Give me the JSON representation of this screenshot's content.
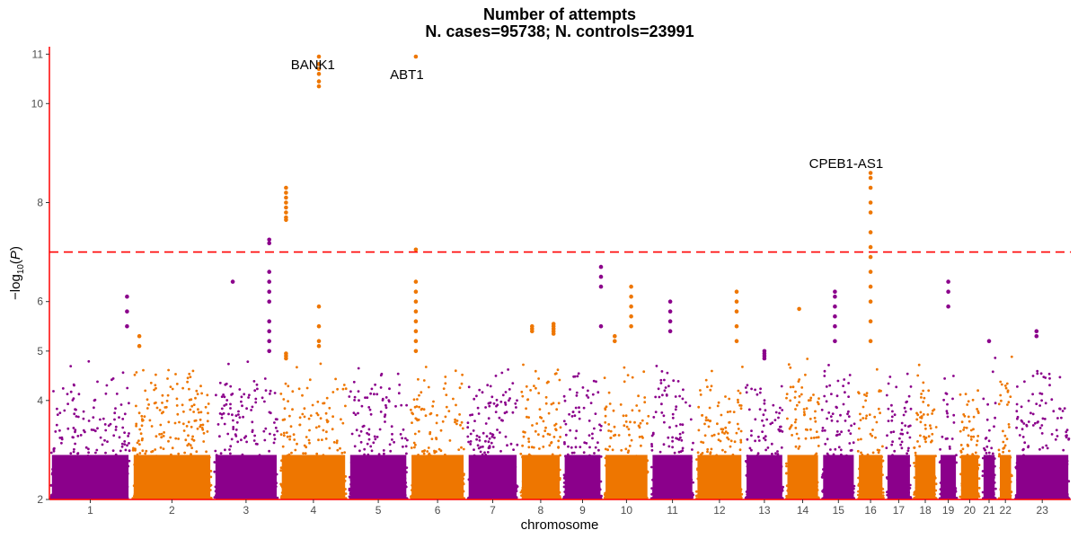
{
  "chart_data": {
    "type": "scatter",
    "title_lines": [
      "Number of attempts",
      "N. cases=95738; N. controls=23991"
    ],
    "xlabel": "chromosome",
    "ylabel": "−log10(P)",
    "ylim": [
      2,
      11.15
    ],
    "yticks": [
      2,
      4,
      5,
      6,
      8,
      10,
      11
    ],
    "significance_threshold": 7.0,
    "colors": {
      "odd": "#8b008b",
      "even": "#ee7600",
      "threshold": "#ff0000",
      "axis": "#ff0000"
    },
    "chromosomes": [
      {
        "label": "1",
        "start": 0.0,
        "end": 8.0,
        "show": true
      },
      {
        "label": "2",
        "start": 8.0,
        "end": 16.0,
        "show": true
      },
      {
        "label": "3",
        "start": 16.0,
        "end": 22.5,
        "show": true
      },
      {
        "label": "4",
        "start": 22.5,
        "end": 29.2,
        "show": true
      },
      {
        "label": "5",
        "start": 29.2,
        "end": 35.2,
        "show": true
      },
      {
        "label": "6",
        "start": 35.2,
        "end": 40.8,
        "show": true
      },
      {
        "label": "7",
        "start": 40.8,
        "end": 46.0,
        "show": true
      },
      {
        "label": "8",
        "start": 46.0,
        "end": 50.2,
        "show": true
      },
      {
        "label": "9",
        "start": 50.2,
        "end": 54.2,
        "show": true
      },
      {
        "label": "10",
        "start": 54.2,
        "end": 58.8,
        "show": true
      },
      {
        "label": "11",
        "start": 58.8,
        "end": 63.2,
        "show": true
      },
      {
        "label": "12",
        "start": 63.2,
        "end": 68.0,
        "show": true
      },
      {
        "label": "13",
        "start": 68.0,
        "end": 72.0,
        "show": true
      },
      {
        "label": "14",
        "start": 72.0,
        "end": 75.5,
        "show": true
      },
      {
        "label": "15",
        "start": 75.5,
        "end": 79.0,
        "show": true
      },
      {
        "label": "16",
        "start": 79.0,
        "end": 81.8,
        "show": true
      },
      {
        "label": "17",
        "start": 81.8,
        "end": 84.5,
        "show": true
      },
      {
        "label": "18",
        "start": 84.5,
        "end": 87.0,
        "show": true
      },
      {
        "label": "19",
        "start": 87.0,
        "end": 89.0,
        "show": true
      },
      {
        "label": "20",
        "start": 89.0,
        "end": 91.2,
        "show": true
      },
      {
        "label": "21",
        "start": 91.2,
        "end": 92.8,
        "show": true
      },
      {
        "label": "22",
        "start": 92.8,
        "end": 94.4,
        "show": true
      },
      {
        "label": "23",
        "start": 94.4,
        "end": 100.0,
        "show": true
      }
    ],
    "peaks": [
      {
        "chrom": "3",
        "pos": 0.85,
        "values": [
          7.25,
          7.18,
          6.6,
          6.4,
          6.2,
          6.0,
          5.6,
          5.4,
          5.2,
          5.0
        ]
      },
      {
        "chrom": "3",
        "pos": 0.3,
        "values": [
          6.4
        ]
      },
      {
        "chrom": "4",
        "pos": 0.1,
        "values": [
          4.95,
          4.9,
          4.85
        ]
      },
      {
        "chrom": "4",
        "pos": 0.1,
        "values": [
          8.3,
          8.2,
          8.1,
          8.0,
          7.9,
          7.8,
          7.7,
          7.65
        ]
      },
      {
        "chrom": "4",
        "pos": 0.58,
        "values": [
          10.95,
          10.8,
          10.7,
          10.6,
          10.45,
          10.35,
          5.9,
          5.5,
          5.2,
          5.1
        ]
      },
      {
        "chrom": "6",
        "pos": 0.12,
        "values": [
          10.95,
          7.05,
          6.4,
          6.2,
          6.0,
          5.8,
          5.6,
          5.4,
          5.2,
          5.0
        ]
      },
      {
        "chrom": "1",
        "pos": 0.95,
        "values": [
          6.1,
          5.8,
          5.5
        ]
      },
      {
        "chrom": "2",
        "pos": 0.1,
        "values": [
          5.3,
          5.1
        ]
      },
      {
        "chrom": "8",
        "pos": 0.3,
        "values": [
          5.5,
          5.45,
          5.4
        ]
      },
      {
        "chrom": "8",
        "pos": 0.8,
        "values": [
          5.55,
          5.5,
          5.45,
          5.4,
          5.35
        ]
      },
      {
        "chrom": "9",
        "pos": 0.95,
        "values": [
          6.7,
          6.5,
          6.3,
          5.5
        ]
      },
      {
        "chrom": "10",
        "pos": 0.6,
        "values": [
          6.3,
          6.1,
          5.9,
          5.7,
          5.5
        ]
      },
      {
        "chrom": "10",
        "pos": 0.25,
        "values": [
          5.3,
          5.2
        ]
      },
      {
        "chrom": "11",
        "pos": 0.45,
        "values": [
          6.0,
          5.8,
          5.6,
          5.4
        ]
      },
      {
        "chrom": "12",
        "pos": 0.85,
        "values": [
          6.2,
          6.0,
          5.8,
          5.5,
          5.2
        ]
      },
      {
        "chrom": "13",
        "pos": 0.5,
        "values": [
          5.0,
          4.95,
          4.9,
          4.85
        ]
      },
      {
        "chrom": "14",
        "pos": 0.4,
        "values": [
          5.85
        ]
      },
      {
        "chrom": "15",
        "pos": 0.4,
        "values": [
          6.2,
          6.1,
          5.9,
          5.7,
          5.5,
          5.2
        ]
      },
      {
        "chrom": "16",
        "pos": 0.5,
        "values": [
          8.6,
          8.5,
          8.3,
          8.0,
          7.8,
          7.4,
          7.1,
          6.9,
          6.6,
          6.3,
          6.0,
          5.6,
          5.2
        ]
      },
      {
        "chrom": "19",
        "pos": 0.5,
        "values": [
          6.4,
          6.2,
          5.9
        ]
      },
      {
        "chrom": "21",
        "pos": 0.5,
        "values": [
          5.2
        ]
      },
      {
        "chrom": "23",
        "pos": 0.4,
        "values": [
          5.4,
          5.3
        ]
      }
    ],
    "annotations": [
      {
        "text": "BANK1",
        "x": 25.8,
        "y": 10.7
      },
      {
        "text": "ABT1",
        "x": 35.0,
        "y": 10.5
      },
      {
        "text": "CPEB1-AS1",
        "x": 78.0,
        "y": 8.7
      }
    ]
  }
}
